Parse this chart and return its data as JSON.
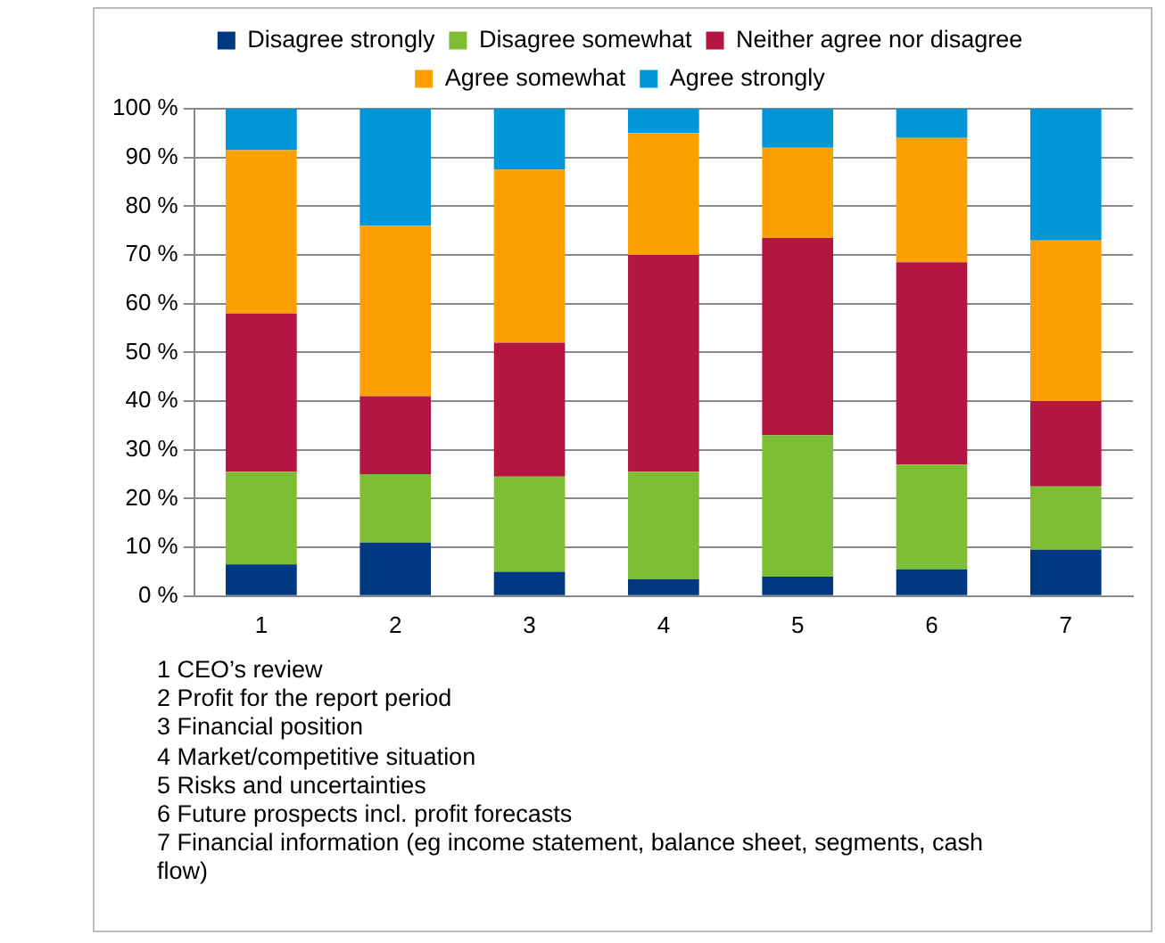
{
  "chart_data": {
    "type": "bar",
    "stacked": true,
    "categories": [
      "1",
      "2",
      "3",
      "4",
      "5",
      "6",
      "7"
    ],
    "series": [
      {
        "name": "Disagree strongly",
        "color": "#003882",
        "values": [
          6.5,
          11,
          5,
          3.5,
          4,
          5.5,
          9.5
        ]
      },
      {
        "name": "Disagree somewhat",
        "color": "#7dbe34",
        "values": [
          19,
          14,
          19.5,
          22,
          29,
          21.5,
          13
        ]
      },
      {
        "name": "Neither agree nor disagree",
        "color": "#b31643",
        "values": [
          32.5,
          16,
          27.5,
          44.5,
          40.5,
          41.5,
          17.5
        ]
      },
      {
        "name": "Agree somewhat",
        "color": "#fca000",
        "values": [
          33.5,
          35,
          35.5,
          25,
          18.5,
          25.5,
          33
        ]
      },
      {
        "name": "Agree strongly",
        "color": "#0096d8",
        "values": [
          8.5,
          24,
          12.5,
          5,
          8,
          6,
          27
        ]
      }
    ],
    "ylim": [
      0,
      100
    ],
    "yticks": [
      {
        "value": 0,
        "label": "0 %"
      },
      {
        "value": 10,
        "label": "10 %"
      },
      {
        "value": 20,
        "label": "20 %"
      },
      {
        "value": 30,
        "label": "30 %"
      },
      {
        "value": 40,
        "label": "40 %"
      },
      {
        "value": 50,
        "label": "50 %"
      },
      {
        "value": 60,
        "label": "60 %"
      },
      {
        "value": 70,
        "label": "70 %"
      },
      {
        "value": 80,
        "label": "80 %"
      },
      {
        "value": 90,
        "label": "90 %"
      },
      {
        "value": 100,
        "label": "100 %"
      }
    ],
    "grid": "y",
    "legend": "top",
    "annotations": [
      "1 CEO’s review",
      "2 Profit for the report period",
      "3 Financial position",
      "4 Market/competitive situation",
      "5 Risks and uncertainties",
      "6 Future prospects incl. profit forecasts",
      "7 Financial information (eg income statement, balance sheet, segments, cash flow)"
    ]
  }
}
